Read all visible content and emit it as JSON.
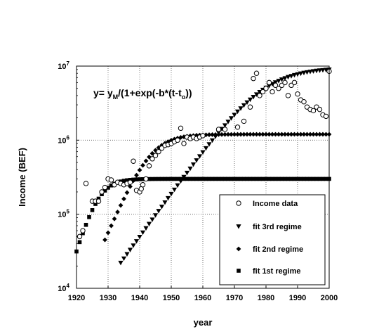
{
  "chart_data": {
    "type": "scatter",
    "title": "",
    "xlabel": "year",
    "ylabel": "Income (BEF)",
    "xlim": [
      1920,
      2000
    ],
    "ylim": [
      10000,
      10000000
    ],
    "yscale": "log",
    "grid": true,
    "legend_position": "bottom-right",
    "x_ticks": [
      1920,
      1930,
      1940,
      1950,
      1960,
      1970,
      1980,
      1990,
      2000
    ],
    "y_ticks": [
      {
        "value": 10000,
        "base": "10",
        "exp": "4"
      },
      {
        "value": 100000,
        "base": "10",
        "exp": "5"
      },
      {
        "value": 1000000,
        "base": "10",
        "exp": "6"
      },
      {
        "value": 10000000,
        "base": "10",
        "exp": "7"
      }
    ],
    "annotation": {
      "main": "y= y",
      "sub_m": "M",
      "mid": "/(1+exp(-b*(t-t",
      "sub_o": "o",
      "end": "))"
    },
    "series": [
      {
        "name": "Income data",
        "marker": "open-circle",
        "points": [
          [
            1921,
            50000
          ],
          [
            1922,
            60000
          ],
          [
            1923,
            260000
          ],
          [
            1925,
            150000
          ],
          [
            1926,
            150000
          ],
          [
            1927,
            150000
          ],
          [
            1928,
            200000
          ],
          [
            1929,
            230000
          ],
          [
            1930,
            300000
          ],
          [
            1931,
            290000
          ],
          [
            1932,
            250000
          ],
          [
            1933,
            270000
          ],
          [
            1934,
            260000
          ],
          [
            1935,
            250000
          ],
          [
            1936,
            260000
          ],
          [
            1937,
            270000
          ],
          [
            1938,
            520000
          ],
          [
            1939,
            210000
          ],
          [
            1940,
            200000
          ],
          [
            1940.5,
            220000
          ],
          [
            1941,
            250000
          ],
          [
            1942,
            300000
          ],
          [
            1943,
            450000
          ],
          [
            1944,
            560000
          ],
          [
            1945,
            620000
          ],
          [
            1946,
            700000
          ],
          [
            1947,
            780000
          ],
          [
            1948,
            850000
          ],
          [
            1949,
            870000
          ],
          [
            1950,
            900000
          ],
          [
            1951,
            950000
          ],
          [
            1952,
            1000000
          ],
          [
            1953,
            1450000
          ],
          [
            1954,
            900000
          ],
          [
            1955,
            1100000
          ],
          [
            1956,
            1050000
          ],
          [
            1957,
            1100000
          ],
          [
            1958,
            1050000
          ],
          [
            1959,
            1100000
          ],
          [
            1960,
            1150000
          ],
          [
            1965,
            1400000
          ],
          [
            1967,
            1400000
          ],
          [
            1971,
            1500000
          ],
          [
            1973,
            1800000
          ],
          [
            1975,
            2800000
          ],
          [
            1976,
            6800000
          ],
          [
            1977,
            8000000
          ],
          [
            1978,
            4000000
          ],
          [
            1979,
            4500000
          ],
          [
            1980,
            5000000
          ],
          [
            1981,
            6000000
          ],
          [
            1982,
            4500000
          ],
          [
            1983,
            5500000
          ],
          [
            1984,
            5000000
          ],
          [
            1985,
            5500000
          ],
          [
            1986,
            6000000
          ],
          [
            1987,
            4000000
          ],
          [
            1988,
            5500000
          ],
          [
            1989,
            6000000
          ],
          [
            1990,
            4200000
          ],
          [
            1991,
            3500000
          ],
          [
            1992,
            3300000
          ],
          [
            1993,
            2800000
          ],
          [
            1994,
            2600000
          ],
          [
            1995,
            2500000
          ],
          [
            1996,
            2800000
          ],
          [
            1997,
            2600000
          ],
          [
            1998,
            2200000
          ],
          [
            1999,
            2100000
          ],
          [
            2000,
            8500000
          ]
        ]
      },
      {
        "name": "fit 3rd regime",
        "marker": "triangle-down",
        "logistic": {
          "ym": 9500000,
          "b": 0.135,
          "t0": 1978.9
        },
        "x_start": 1934,
        "x_end": 2000,
        "step": 1
      },
      {
        "name": "fit 2nd regime",
        "marker": "diamond",
        "logistic": {
          "ym": 1200000,
          "b": 0.23,
          "t0": 1943.1
        },
        "x_start": 1929,
        "x_end": 2000,
        "step": 1
      },
      {
        "name": "fit 1st regime",
        "marker": "square",
        "logistic": {
          "ym": 300000,
          "b": 0.33,
          "t0": 1926.5
        },
        "x_start": 1920,
        "x_end": 2000,
        "step": 1
      }
    ]
  }
}
